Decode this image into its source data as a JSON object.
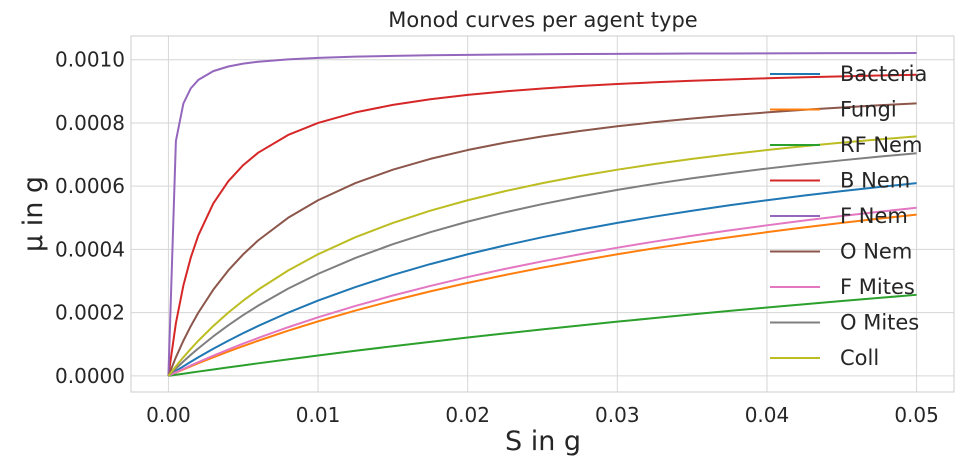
{
  "chart_data": {
    "type": "line",
    "title": "Monod curves per agent type",
    "xlabel": "S in g",
    "ylabel": "μ in g",
    "xlim": [
      -0.0025,
      0.0525
    ],
    "ylim": [
      -5.1e-05,
      0.001075
    ],
    "xticks": [
      0.0,
      0.01,
      0.02,
      0.03,
      0.04,
      0.05
    ],
    "xtick_labels": [
      "0.00",
      "0.01",
      "0.02",
      "0.03",
      "0.04",
      "0.05"
    ],
    "yticks": [
      0.0,
      0.0002,
      0.0004,
      0.0006,
      0.0008,
      0.001
    ],
    "ytick_labels": [
      "0.0000",
      "0.0002",
      "0.0004",
      "0.0006",
      "0.0008",
      "0.0010"
    ],
    "grid": true,
    "legend_position": "right",
    "x": [
      0,
      0.0005,
      0.001,
      0.0015,
      0.002,
      0.003,
      0.004,
      0.005,
      0.006,
      0.008,
      0.01,
      0.0125,
      0.015,
      0.0175,
      0.02,
      0.0225,
      0.025,
      0.0275,
      0.03,
      0.0325,
      0.035,
      0.0375,
      0.04,
      0.0425,
      0.045,
      0.0475,
      0.05
    ],
    "series": [
      {
        "name": "Bacteria",
        "color": "#1f77b4",
        "mu_max": 0.001,
        "ks": 0.032
      },
      {
        "name": "Fungi",
        "color": "#ff7f0e",
        "mu_max": 0.001,
        "ks": 0.048
      },
      {
        "name": "RF Nem",
        "color": "#2ca02c",
        "mu_max": 0.001,
        "ks": 0.145
      },
      {
        "name": "B Nem",
        "color": "#d62728",
        "mu_max": 0.001,
        "ks": 0.0025
      },
      {
        "name": "F Nem",
        "color": "#9467bd",
        "mu_max": 0.001025,
        "ks": 0.00019
      },
      {
        "name": "O Nem",
        "color": "#8c564b",
        "mu_max": 0.001,
        "ks": 0.008
      },
      {
        "name": "F Mites",
        "color": "#e377c2",
        "mu_max": 0.001,
        "ks": 0.044
      },
      {
        "name": "O Mites",
        "color": "#7f7f7f",
        "mu_max": 0.001,
        "ks": 0.021
      },
      {
        "name": "Coll",
        "color": "#bcbd22",
        "mu_max": 0.001,
        "ks": 0.016
      }
    ]
  }
}
